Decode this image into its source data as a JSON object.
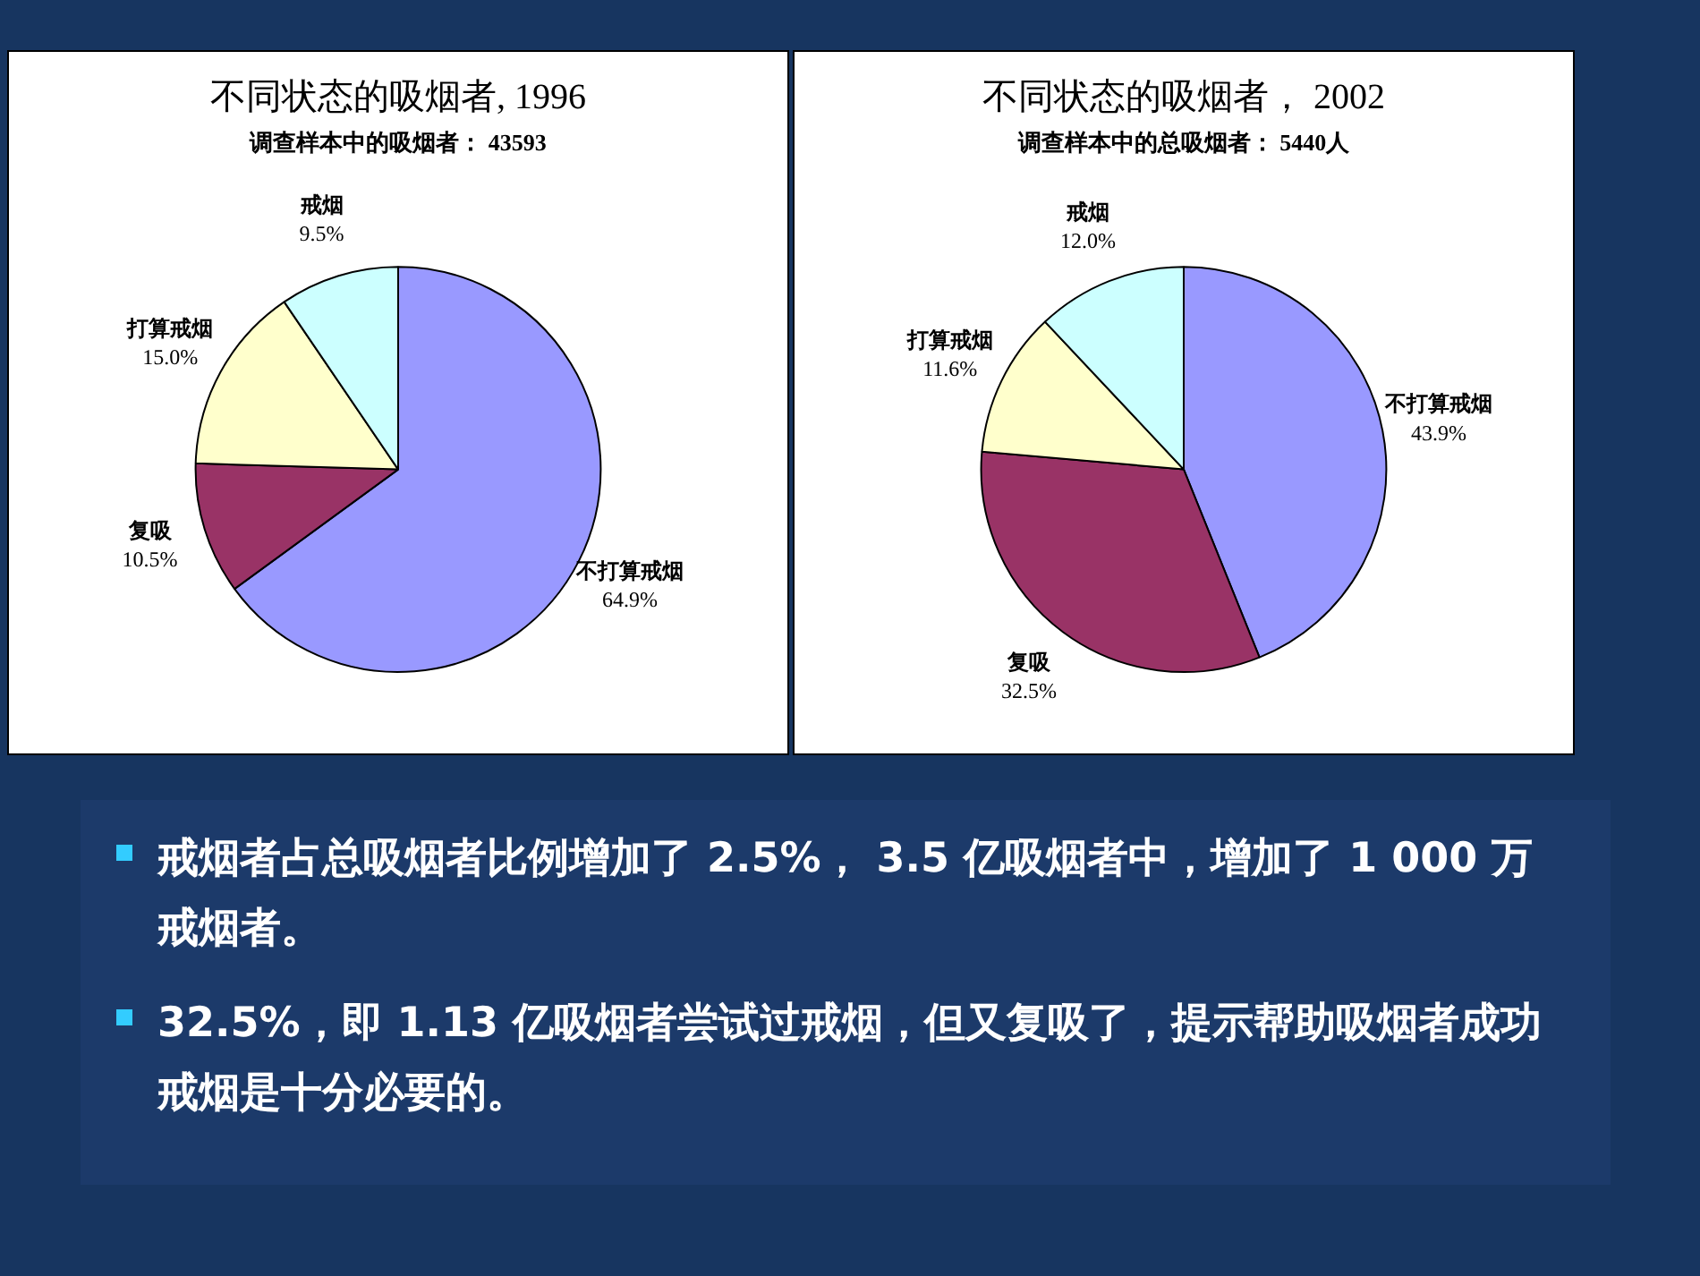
{
  "chart_data": [
    {
      "type": "pie",
      "title": "不同状态的吸烟者, 1996",
      "subtitle": "调查样本中的吸烟者： 43593",
      "categories": [
        "不打算戒烟",
        "复吸",
        "打算戒烟",
        "戒烟"
      ],
      "values": [
        64.9,
        10.5,
        15.0,
        9.5
      ],
      "value_labels": [
        "64.9%",
        "10.5%",
        "15.0%",
        "9.5%"
      ],
      "colors": [
        "#9999ff",
        "#993366",
        "#ffffcc",
        "#ccffff"
      ]
    },
    {
      "type": "pie",
      "title": "不同状态的吸烟者， 2002",
      "subtitle": "调查样本中的总吸烟者： 5440人",
      "categories": [
        "不打算戒烟",
        "复吸",
        "打算戒烟",
        "戒烟"
      ],
      "values": [
        43.9,
        32.5,
        11.6,
        12.0
      ],
      "value_labels": [
        "43.9%",
        "32.5%",
        "11.6%",
        "12.0%"
      ],
      "colors": [
        "#9999ff",
        "#993366",
        "#ffffcc",
        "#ccffff"
      ]
    },
    {
      "type": "other",
      "annotations": [
        "戒烟者占总吸烟者比例增加了 2.5%， 3.5 亿吸烟者中，增加了 1 000 万戒烟者。",
        "32.5%，即 1.13 亿吸烟者尝试过戒烟，但又复吸了，提示帮助吸烟者成功戒烟是十分必要的。"
      ]
    }
  ]
}
